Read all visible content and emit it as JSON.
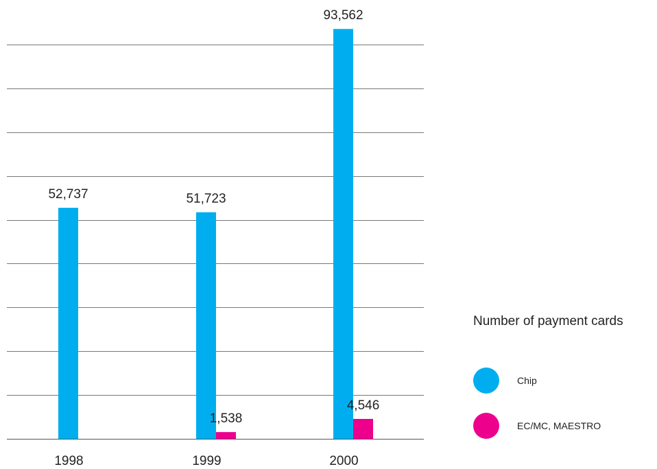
{
  "chart_data": {
    "type": "bar",
    "categories": [
      "1998",
      "1999",
      "2000"
    ],
    "series": [
      {
        "name": "Chip",
        "color": "#00AEEF",
        "values": [
          52737,
          51723,
          93562
        ]
      },
      {
        "name": "EC/MC, MAESTRO",
        "color": "#EC008C",
        "values": [
          null,
          1538,
          4546
        ]
      }
    ],
    "value_labels": [
      [
        "52,737",
        "51,723",
        "93,562"
      ],
      [
        "",
        "1,538",
        "4,546"
      ]
    ],
    "title": "",
    "xlabel": "",
    "ylabel": "",
    "ylim": [
      0,
      90000
    ],
    "grid": true,
    "legend": {
      "title": "Number of payment cards",
      "placement": "right"
    }
  }
}
